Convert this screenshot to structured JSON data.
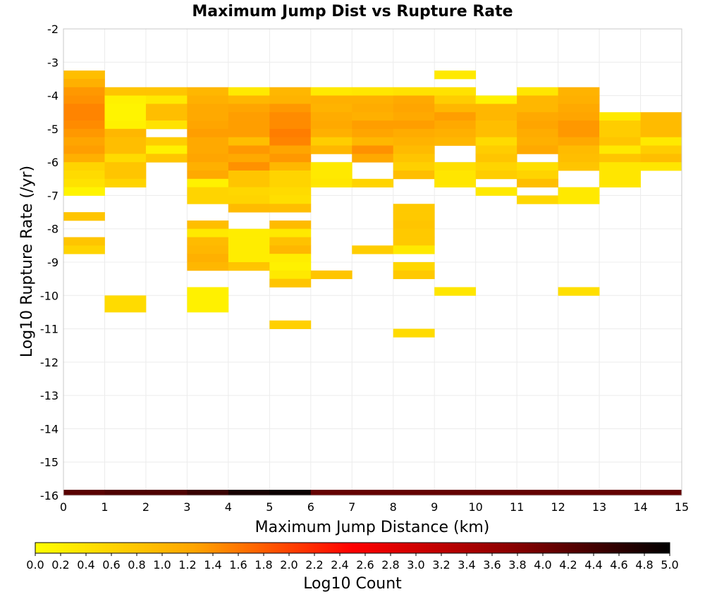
{
  "chart_data": {
    "type": "heatmap",
    "title": "Maximum Jump Dist vs Rupture Rate",
    "xlabel": "Maximum Jump Distance (km)",
    "ylabel": "Log10 Rupture Rate (/yr)",
    "xlim": [
      0,
      15
    ],
    "ylim": [
      -16,
      -2
    ],
    "x_bin_width": 1,
    "y_bin_width": 0.25,
    "grid": true,
    "x_ticks": [
      "0",
      "1",
      "2",
      "3",
      "4",
      "5",
      "6",
      "7",
      "8",
      "9",
      "10",
      "11",
      "12",
      "13",
      "14",
      "15"
    ],
    "y_ticks": [
      "-2",
      "-3",
      "-4",
      "-5",
      "-6",
      "-7",
      "-8",
      "-9",
      "-10",
      "-11",
      "-12",
      "-13",
      "-14",
      "-15",
      "-16"
    ],
    "colorbar": {
      "label": "Log10 Count",
      "range": [
        0,
        5
      ],
      "ticks": [
        "0.0",
        "0.2",
        "0.4",
        "0.6",
        "0.8",
        "1.0",
        "1.2",
        "1.4",
        "1.6",
        "1.8",
        "2.0",
        "2.2",
        "2.4",
        "2.6",
        "2.8",
        "3.0",
        "3.2",
        "3.4",
        "3.6",
        "3.8",
        "4.0",
        "4.2",
        "4.4",
        "4.6",
        "4.8",
        "5.0"
      ],
      "colors": [
        "#ffff00",
        "#ffa500",
        "#ff0000",
        "#8b0000",
        "#000000"
      ]
    },
    "bottom_strip": [
      {
        "x0": 0,
        "x1": 1,
        "value": 4.2
      },
      {
        "x0": 1,
        "x1": 2,
        "value": 4.3
      },
      {
        "x0": 2,
        "x1": 3,
        "value": 4.3
      },
      {
        "x0": 3,
        "x1": 4,
        "value": 4.5
      },
      {
        "x0": 4,
        "x1": 5,
        "value": 4.8
      },
      {
        "x0": 5,
        "x1": 6,
        "value": 4.9
      },
      {
        "x0": 6,
        "x1": 15,
        "value": 4.1
      }
    ],
    "columns": [
      {
        "x0": 0,
        "cells": [
          [
            -3.5,
            0.9
          ],
          [
            -3.75,
            1.1
          ],
          [
            -4.0,
            1.35
          ],
          [
            -4.25,
            1.4
          ],
          [
            -4.5,
            1.5
          ],
          [
            -4.75,
            1.5
          ],
          [
            -5.0,
            1.45
          ],
          [
            -5.25,
            1.35
          ],
          [
            -5.5,
            1.25
          ],
          [
            -5.75,
            1.3
          ],
          [
            -6.0,
            1.1
          ],
          [
            -6.25,
            0.6
          ],
          [
            -6.5,
            0.5
          ],
          [
            -6.75,
            0.4
          ],
          [
            -7.0,
            0.15
          ],
          [
            -7.75,
            0.8
          ],
          [
            -8.5,
            0.8
          ],
          [
            -8.75,
            0.6
          ]
        ]
      },
      {
        "x0": 1,
        "cells": [
          [
            -4.0,
            0.8
          ],
          [
            -4.25,
            0.2
          ],
          [
            -4.5,
            0.15
          ],
          [
            -4.75,
            0.15
          ],
          [
            -5.0,
            0.2
          ],
          [
            -5.25,
            1.0
          ],
          [
            -5.5,
            0.9
          ],
          [
            -5.75,
            0.9
          ],
          [
            -6.0,
            0.5
          ],
          [
            -6.25,
            0.8
          ],
          [
            -6.5,
            0.8
          ],
          [
            -6.75,
            0.6
          ],
          [
            -10.25,
            0.5
          ],
          [
            -10.5,
            0.5
          ]
        ]
      },
      {
        "x0": 2,
        "cells": [
          [
            -4.0,
            0.8
          ],
          [
            -4.25,
            0.3
          ],
          [
            -4.5,
            0.9
          ],
          [
            -4.75,
            0.9
          ],
          [
            -5.0,
            0.4
          ],
          [
            -5.5,
            0.7
          ],
          [
            -5.75,
            0.2
          ],
          [
            -6.0,
            0.8
          ]
        ]
      },
      {
        "x0": 3,
        "cells": [
          [
            -4.0,
            1.0
          ],
          [
            -4.25,
            1.1
          ],
          [
            -4.5,
            1.2
          ],
          [
            -4.75,
            1.2
          ],
          [
            -5.0,
            1.25
          ],
          [
            -5.25,
            1.3
          ],
          [
            -5.5,
            1.2
          ],
          [
            -5.75,
            1.2
          ],
          [
            -6.0,
            1.25
          ],
          [
            -6.25,
            1.1
          ],
          [
            -6.5,
            1.2
          ],
          [
            -6.75,
            0.2
          ],
          [
            -7.0,
            0.6
          ],
          [
            -7.25,
            0.6
          ],
          [
            -8.0,
            0.9
          ],
          [
            -8.25,
            0.3
          ],
          [
            -8.5,
            0.95
          ],
          [
            -8.75,
            1.0
          ],
          [
            -9.0,
            1.1
          ],
          [
            -9.25,
            1.0
          ],
          [
            -10.0,
            0.2
          ],
          [
            -10.25,
            0.2
          ],
          [
            -10.5,
            0.2
          ]
        ]
      },
      {
        "x0": 4,
        "cells": [
          [
            -4.0,
            0.3
          ],
          [
            -4.25,
            1.0
          ],
          [
            -4.5,
            1.25
          ],
          [
            -4.75,
            1.3
          ],
          [
            -5.0,
            1.3
          ],
          [
            -5.25,
            1.3
          ],
          [
            -5.5,
            0.9
          ],
          [
            -5.75,
            1.35
          ],
          [
            -6.0,
            1.2
          ],
          [
            -6.25,
            1.4
          ],
          [
            -6.5,
            0.8
          ],
          [
            -6.75,
            0.8
          ],
          [
            -7.0,
            0.55
          ],
          [
            -7.25,
            0.6
          ],
          [
            -7.5,
            0.95
          ],
          [
            -8.25,
            0.25
          ],
          [
            -8.5,
            0.25
          ],
          [
            -8.75,
            0.25
          ],
          [
            -9.0,
            0.25
          ],
          [
            -9.25,
            0.8
          ]
        ]
      },
      {
        "x0": 5,
        "cells": [
          [
            -4.0,
            1.0
          ],
          [
            -4.25,
            1.05
          ],
          [
            -4.5,
            1.35
          ],
          [
            -4.75,
            1.45
          ],
          [
            -5.0,
            1.45
          ],
          [
            -5.25,
            1.55
          ],
          [
            -5.5,
            1.5
          ],
          [
            -5.75,
            1.25
          ],
          [
            -6.0,
            1.35
          ],
          [
            -6.25,
            1.0
          ],
          [
            -6.5,
            0.6
          ],
          [
            -6.75,
            0.6
          ],
          [
            -7.0,
            0.5
          ],
          [
            -7.25,
            0.45
          ],
          [
            -7.5,
            0.9
          ],
          [
            -8.0,
            0.95
          ],
          [
            -8.25,
            0.3
          ],
          [
            -8.5,
            0.85
          ],
          [
            -8.75,
            1.0
          ],
          [
            -9.0,
            0.25
          ],
          [
            -9.25,
            0.2
          ],
          [
            -9.5,
            0.3
          ],
          [
            -9.75,
            0.8
          ],
          [
            -11.0,
            0.65
          ]
        ]
      },
      {
        "x0": 6,
        "cells": [
          [
            -4.0,
            0.3
          ],
          [
            -4.25,
            1.1
          ],
          [
            -4.5,
            1.05
          ],
          [
            -4.75,
            1.15
          ],
          [
            -5.0,
            1.2
          ],
          [
            -5.25,
            1.1
          ],
          [
            -5.5,
            0.7
          ],
          [
            -5.75,
            1.0
          ],
          [
            -6.25,
            0.3
          ],
          [
            -6.5,
            0.3
          ],
          [
            -6.75,
            0.35
          ],
          [
            -9.5,
            0.8
          ]
        ]
      },
      {
        "x0": 7,
        "cells": [
          [
            -4.0,
            0.35
          ],
          [
            -4.25,
            1.1
          ],
          [
            -4.5,
            1.15
          ],
          [
            -4.75,
            1.1
          ],
          [
            -5.0,
            1.3
          ],
          [
            -5.25,
            1.25
          ],
          [
            -5.5,
            1.0
          ],
          [
            -5.75,
            1.4
          ],
          [
            -6.0,
            1.2
          ],
          [
            -6.75,
            0.6
          ],
          [
            -8.75,
            0.7
          ]
        ]
      },
      {
        "x0": 8,
        "cells": [
          [
            -4.0,
            0.4
          ],
          [
            -4.25,
            1.2
          ],
          [
            -4.5,
            1.25
          ],
          [
            -4.75,
            1.2
          ],
          [
            -5.0,
            1.3
          ],
          [
            -5.25,
            1.15
          ],
          [
            -5.5,
            1.05
          ],
          [
            -5.75,
            0.95
          ],
          [
            -6.0,
            0.8
          ],
          [
            -6.25,
            0.65
          ],
          [
            -6.5,
            0.9
          ],
          [
            -7.5,
            0.75
          ],
          [
            -7.75,
            0.75
          ],
          [
            -8.0,
            0.8
          ],
          [
            -8.25,
            0.75
          ],
          [
            -8.5,
            0.75
          ],
          [
            -8.75,
            0.3
          ],
          [
            -9.25,
            0.55
          ],
          [
            -9.5,
            0.75
          ],
          [
            -11.25,
            0.5
          ]
        ]
      },
      {
        "x0": 9,
        "cells": [
          [
            -3.5,
            0.3
          ],
          [
            -4.0,
            0.4
          ],
          [
            -4.25,
            0.7
          ],
          [
            -4.5,
            1.0
          ],
          [
            -4.75,
            1.3
          ],
          [
            -5.0,
            1.2
          ],
          [
            -5.25,
            1.1
          ],
          [
            -5.5,
            1.0
          ],
          [
            -6.25,
            0.45
          ],
          [
            -6.5,
            0.35
          ],
          [
            -6.75,
            0.35
          ],
          [
            -10.0,
            0.35
          ]
        ]
      },
      {
        "x0": 10,
        "cells": [
          [
            -4.25,
            0.2
          ],
          [
            -4.5,
            1.0
          ],
          [
            -4.75,
            1.0
          ],
          [
            -5.0,
            0.9
          ],
          [
            -5.25,
            0.9
          ],
          [
            -5.5,
            0.5
          ],
          [
            -5.75,
            0.7
          ],
          [
            -6.0,
            0.8
          ],
          [
            -6.25,
            0.6
          ],
          [
            -6.5,
            0.7
          ],
          [
            -7.0,
            0.3
          ]
        ]
      },
      {
        "x0": 11,
        "cells": [
          [
            -4.0,
            0.35
          ],
          [
            -4.25,
            1.0
          ],
          [
            -4.5,
            1.0
          ],
          [
            -4.75,
            1.2
          ],
          [
            -5.0,
            1.25
          ],
          [
            -5.25,
            1.15
          ],
          [
            -5.5,
            1.1
          ],
          [
            -5.75,
            1.2
          ],
          [
            -6.25,
            0.45
          ],
          [
            -6.5,
            0.6
          ],
          [
            -6.75,
            0.9
          ],
          [
            -7.25,
            0.55
          ]
        ]
      },
      {
        "x0": 12,
        "cells": [
          [
            -4.0,
            1.05
          ],
          [
            -4.25,
            1.1
          ],
          [
            -4.5,
            1.2
          ],
          [
            -4.75,
            1.25
          ],
          [
            -5.0,
            1.35
          ],
          [
            -5.25,
            1.35
          ],
          [
            -5.5,
            1.2
          ],
          [
            -5.75,
            0.95
          ],
          [
            -6.0,
            0.9
          ],
          [
            -6.25,
            0.8
          ],
          [
            -7.0,
            0.3
          ],
          [
            -7.25,
            0.3
          ],
          [
            -10.0,
            0.45
          ]
        ]
      },
      {
        "x0": 13,
        "cells": [
          [
            -4.75,
            0.3
          ],
          [
            -5.0,
            0.7
          ],
          [
            -5.25,
            0.7
          ],
          [
            -5.5,
            0.8
          ],
          [
            -5.75,
            0.3
          ],
          [
            -6.0,
            0.8
          ],
          [
            -6.25,
            0.35
          ],
          [
            -6.5,
            0.35
          ],
          [
            -6.75,
            0.35
          ]
        ]
      },
      {
        "x0": 14,
        "cells": [
          [
            -4.75,
            0.95
          ],
          [
            -5.0,
            0.95
          ],
          [
            -5.25,
            0.95
          ],
          [
            -5.5,
            0.3
          ],
          [
            -5.75,
            0.7
          ],
          [
            -6.0,
            0.9
          ],
          [
            -6.25,
            0.35
          ]
        ]
      }
    ]
  }
}
